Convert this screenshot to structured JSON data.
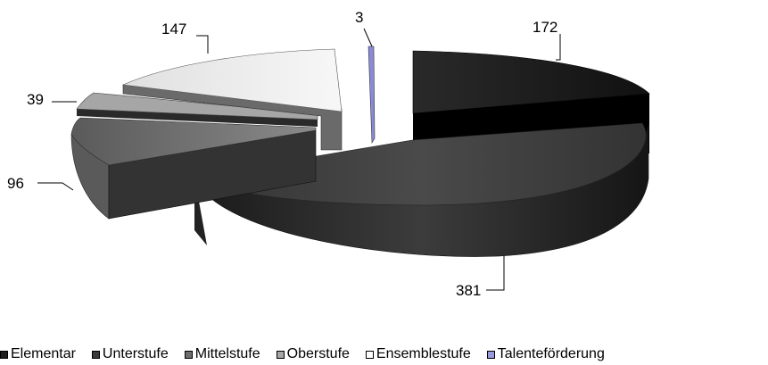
{
  "chart_data": {
    "type": "pie",
    "title": "",
    "categories": [
      "Elementar",
      "Unterstufe",
      "Mittelstufe",
      "Oberstufe",
      "Ensemblestufe",
      "Talenteförderung"
    ],
    "values": [
      172,
      381,
      96,
      39,
      147,
      3
    ],
    "colors": [
      "#1f1f1f",
      "#3a3a3a",
      "#6e6e6e",
      "#a6a6a6",
      "#ededed",
      "#9999dd"
    ],
    "legend_position": "bottom",
    "style": "3d-exploded"
  },
  "labels": {
    "elementar": "172",
    "unterstufe": "381",
    "mittelstufe": "96",
    "oberstufe": "39",
    "ensemblestufe": "147",
    "talent": "3"
  },
  "legend": {
    "items": [
      {
        "label": "Elementar",
        "color": "#1f1f1f"
      },
      {
        "label": "Unterstufe",
        "color": "#3a3a3a"
      },
      {
        "label": "Mittelstufe",
        "color": "#6e6e6e"
      },
      {
        "label": "Oberstufe",
        "color": "#a6a6a6"
      },
      {
        "label": "Ensemblestufe",
        "color": "#ffffff"
      },
      {
        "label": "Talenteförderung",
        "color": "#9999dd"
      }
    ]
  }
}
